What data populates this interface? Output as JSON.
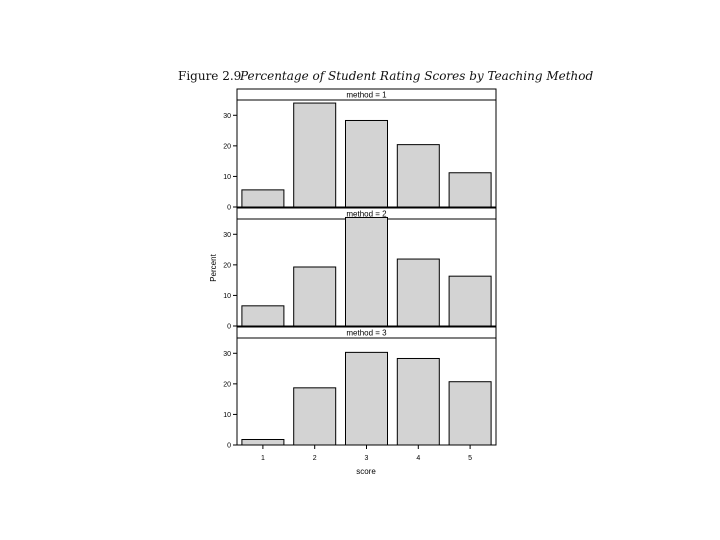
{
  "caption": {
    "label": "Figure 2.9",
    "title": "Percentage of Student Rating Scores by Teaching Method"
  },
  "chart_data": {
    "type": "bar",
    "layout": "vertical panels",
    "xlabel": "score",
    "ylabel": "Percent",
    "categories": [
      "1",
      "2",
      "3",
      "4",
      "5"
    ],
    "ylim": [
      0,
      35
    ],
    "yticks": [
      0,
      10,
      20,
      30
    ],
    "bar_color": "#d3d3d3",
    "panels": [
      {
        "strip": "method = 1",
        "values": [
          5.6,
          34.0,
          28.3,
          20.4,
          11.2
        ]
      },
      {
        "strip": "method = 2",
        "values": [
          6.6,
          19.3,
          35.5,
          21.9,
          16.3
        ]
      },
      {
        "strip": "method = 3",
        "values": [
          1.8,
          18.7,
          30.3,
          28.3,
          20.7
        ]
      }
    ]
  }
}
